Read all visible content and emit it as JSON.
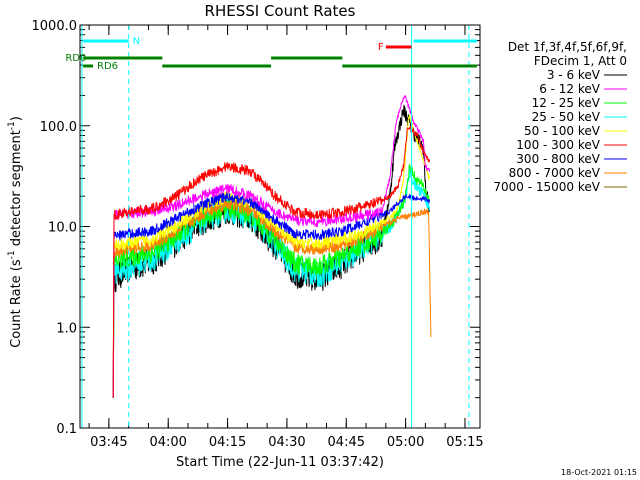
{
  "chart_data": {
    "type": "line",
    "title": "RHESSI Count Rates",
    "xlabel": "Start Time (22-Jun-11 03:37:42)",
    "ylabel_parts": [
      "Count Rate (s",
      "-1",
      " detector segment",
      "-1",
      ")"
    ],
    "yscale": "log",
    "ylim": [
      0.1,
      1000
    ],
    "xlim_minutes": [
      37.7,
      138.8
    ],
    "x_ticks": [
      {
        "t": 45,
        "label": "03:45"
      },
      {
        "t": 60,
        "label": "04:00"
      },
      {
        "t": 75,
        "label": "04:15"
      },
      {
        "t": 90,
        "label": "04:30"
      },
      {
        "t": 105,
        "label": "04:45"
      },
      {
        "t": 120,
        "label": "05:00"
      },
      {
        "t": 135,
        "label": "05:15"
      }
    ],
    "y_ticks": [
      {
        "v": 0.1,
        "label": "0.1"
      },
      {
        "v": 1,
        "label": "1.0"
      },
      {
        "v": 10,
        "label": "10.0"
      },
      {
        "v": 100,
        "label": "100.0"
      },
      {
        "v": 1000,
        "label": "1000.0"
      }
    ],
    "legend_header": [
      "Det 1f,3f,4f,5f,6f,9f,",
      "FDecim 1, Att 0"
    ],
    "series": [
      {
        "name": "3 - 6 keV",
        "color": "#000000",
        "points": [
          [
            46.1,
            0.2
          ],
          [
            46.3,
            3
          ],
          [
            50,
            3.8
          ],
          [
            56,
            4.5
          ],
          [
            62,
            7
          ],
          [
            68,
            11
          ],
          [
            75,
            14.5
          ],
          [
            81,
            12
          ],
          [
            87,
            6.5
          ],
          [
            92,
            3.4
          ],
          [
            98,
            3
          ],
          [
            104,
            4.2
          ],
          [
            110,
            6.5
          ],
          [
            114,
            8
          ],
          [
            116,
            20
          ],
          [
            117.2,
            60
          ],
          [
            118.5,
            100
          ],
          [
            119.5,
            145
          ],
          [
            122,
            85
          ],
          [
            124.5,
            60
          ],
          [
            125,
            25
          ],
          [
            126,
            14.5
          ]
        ],
        "noise": 0.14
      },
      {
        "name": "6 - 12 keV",
        "color": "#ff00ff",
        "points": [
          [
            46.1,
            0.2
          ],
          [
            46.3,
            13
          ],
          [
            50,
            13.5
          ],
          [
            56,
            14
          ],
          [
            62,
            16
          ],
          [
            68,
            20
          ],
          [
            75,
            24
          ],
          [
            81,
            20
          ],
          [
            87,
            14
          ],
          [
            92,
            11.5
          ],
          [
            98,
            11
          ],
          [
            104,
            12
          ],
          [
            110,
            13
          ],
          [
            114,
            14
          ],
          [
            116,
            30
          ],
          [
            117.5,
            100
          ],
          [
            119,
            175
          ],
          [
            119.8,
            200
          ],
          [
            122,
            110
          ],
          [
            124.5,
            70
          ],
          [
            125,
            40
          ],
          [
            126,
            35
          ]
        ],
        "noise": 0.05
      },
      {
        "name": "12 - 25 keV",
        "color": "#00ff00",
        "points": [
          [
            46.1,
            0.2
          ],
          [
            46.3,
            4.5
          ],
          [
            50,
            5
          ],
          [
            56,
            5.5
          ],
          [
            62,
            8
          ],
          [
            68,
            12
          ],
          [
            75,
            15.5
          ],
          [
            81,
            13
          ],
          [
            87,
            7.5
          ],
          [
            92,
            4.3
          ],
          [
            98,
            4
          ],
          [
            104,
            5
          ],
          [
            110,
            7
          ],
          [
            114,
            8.5
          ],
          [
            116,
            10
          ],
          [
            118,
            13
          ],
          [
            120,
            20
          ],
          [
            121,
            40
          ],
          [
            122.5,
            30
          ],
          [
            124.5,
            25
          ],
          [
            126,
            18
          ]
        ],
        "noise": 0.1
      },
      {
        "name": "25 - 50 keV",
        "color": "#00ffff",
        "points": [
          [
            46.1,
            0.2
          ],
          [
            46.3,
            3.6
          ],
          [
            50,
            4
          ],
          [
            56,
            4.8
          ],
          [
            62,
            7
          ],
          [
            68,
            11
          ],
          [
            75,
            15
          ],
          [
            81,
            12.5
          ],
          [
            87,
            6.8
          ],
          [
            92,
            3.8
          ],
          [
            98,
            3.3
          ],
          [
            104,
            4.5
          ],
          [
            110,
            6.8
          ],
          [
            114,
            8.5
          ],
          [
            116,
            10
          ],
          [
            118,
            13
          ],
          [
            120,
            20
          ],
          [
            121,
            35
          ],
          [
            122.5,
            25
          ],
          [
            124.5,
            22
          ],
          [
            126,
            15
          ]
        ],
        "noise": 0.13
      },
      {
        "name": "50 - 100 keV",
        "color": "#ffff00",
        "points": [
          [
            46.1,
            0.2
          ],
          [
            46.3,
            6.5
          ],
          [
            50,
            6.8
          ],
          [
            56,
            7.5
          ],
          [
            62,
            10
          ],
          [
            68,
            15
          ],
          [
            75,
            20
          ],
          [
            81,
            17
          ],
          [
            87,
            10
          ],
          [
            92,
            7
          ],
          [
            98,
            6.8
          ],
          [
            104,
            7.5
          ],
          [
            110,
            9
          ],
          [
            114,
            11
          ],
          [
            116,
            12
          ],
          [
            118,
            15
          ],
          [
            119.5,
            30
          ],
          [
            120.8,
            130
          ],
          [
            123,
            70
          ],
          [
            124.5,
            45
          ],
          [
            126,
            30
          ]
        ],
        "noise": 0.06
      },
      {
        "name": "100 - 300 keV",
        "color": "#ff0000",
        "points": [
          [
            46.1,
            0.2
          ],
          [
            46.3,
            13
          ],
          [
            50,
            14
          ],
          [
            56,
            15
          ],
          [
            62,
            20
          ],
          [
            68,
            30
          ],
          [
            75,
            40
          ],
          [
            81,
            35
          ],
          [
            87,
            20
          ],
          [
            92,
            14
          ],
          [
            98,
            13
          ],
          [
            104,
            14
          ],
          [
            110,
            16
          ],
          [
            114,
            18
          ],
          [
            116,
            20
          ],
          [
            118,
            25
          ],
          [
            119.5,
            40
          ],
          [
            120.5,
            100
          ],
          [
            123,
            80
          ],
          [
            124.5,
            55
          ],
          [
            126,
            45
          ]
        ],
        "noise": 0.05
      },
      {
        "name": "300 - 800 keV",
        "color": "#0000ff",
        "points": [
          [
            46.1,
            0.2
          ],
          [
            46.3,
            8
          ],
          [
            50,
            8.5
          ],
          [
            56,
            9
          ],
          [
            62,
            12
          ],
          [
            68,
            16
          ],
          [
            75,
            20
          ],
          [
            81,
            17.5
          ],
          [
            87,
            11.5
          ],
          [
            92,
            8.5
          ],
          [
            98,
            8.2
          ],
          [
            104,
            9
          ],
          [
            110,
            11
          ],
          [
            114,
            13
          ],
          [
            116,
            14
          ],
          [
            118,
            17
          ],
          [
            120,
            20
          ],
          [
            122.5,
            19
          ],
          [
            124.5,
            19
          ],
          [
            126,
            18
          ]
        ],
        "noise": 0.05
      },
      {
        "name": "800 - 7000 keV",
        "color": "#ff8000",
        "points": [
          [
            46.1,
            0.2
          ],
          [
            46.3,
            5.5
          ],
          [
            50,
            6
          ],
          [
            56,
            6.5
          ],
          [
            62,
            9
          ],
          [
            68,
            13
          ],
          [
            75,
            17
          ],
          [
            81,
            14.5
          ],
          [
            87,
            9
          ],
          [
            92,
            6.2
          ],
          [
            98,
            6
          ],
          [
            104,
            6.5
          ],
          [
            110,
            8
          ],
          [
            114,
            10
          ],
          [
            118,
            12
          ],
          [
            122,
            13
          ],
          [
            124.5,
            14
          ],
          [
            125.8,
            14
          ],
          [
            126.4,
            0.8
          ]
        ],
        "noise": 0.06
      },
      {
        "name": "7000 - 15000 keV",
        "color": "#806000",
        "points": [],
        "noise": 0
      }
    ],
    "attenuator_segments": [
      {
        "label": "N",
        "color": "#00ffff",
        "y": 41,
        "ranges": [
          [
            38.5,
            50
          ]
        ],
        "label_t": 51
      },
      {
        "label": "",
        "color": "#00ffff",
        "y": 41,
        "ranges": [
          [
            122,
            138
          ]
        ],
        "label_t": null
      },
      {
        "label": "F",
        "color": "#ff0000",
        "y": 47,
        "ranges": [
          [
            115,
            121.5
          ]
        ],
        "label_t": 113
      },
      {
        "label": "RD0",
        "color": "#008000",
        "y": 58,
        "ranges": [
          [
            38.5,
            58.5
          ],
          [
            86,
            104
          ]
        ],
        "label_t": 34
      },
      {
        "label": "RD6",
        "color": "#008000",
        "y": 66,
        "ranges": [
          [
            38.5,
            41
          ],
          [
            58.5,
            86
          ],
          [
            104,
            138
          ]
        ],
        "label_t": 42
      }
    ],
    "vertical_markers": [
      {
        "t": 38.2,
        "style": "solid",
        "color": "#00ffff"
      },
      {
        "t": 50,
        "style": "dashed",
        "color": "#00ffff"
      },
      {
        "t": 121.5,
        "style": "solid",
        "color": "#00ffff"
      },
      {
        "t": 136,
        "style": "dashed",
        "color": "#00ffff"
      }
    ]
  },
  "footer": {
    "timestamp": "18-Oct-2021 01:15"
  }
}
